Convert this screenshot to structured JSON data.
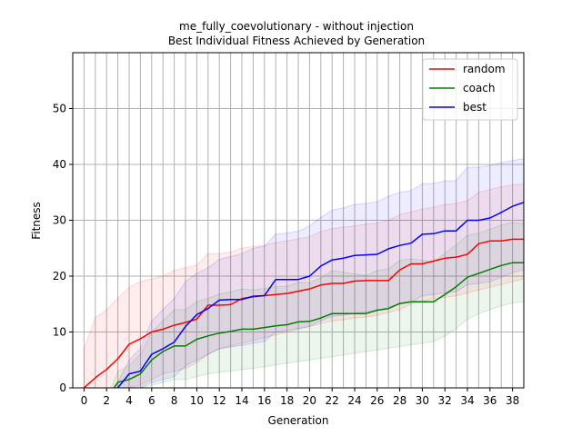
{
  "chart_data": {
    "type": "line",
    "title_line1": "me_fully_coevolutionary - without injection",
    "title_line2": "Best Individual Fitness Achieved by Generation",
    "xlabel": "Generation",
    "ylabel": "Fitness",
    "xlim": [
      -1,
      39
    ],
    "ylim": [
      0,
      60
    ],
    "xticks": [
      0,
      2,
      4,
      6,
      8,
      10,
      12,
      14,
      16,
      18,
      20,
      22,
      24,
      26,
      28,
      30,
      32,
      34,
      36,
      38
    ],
    "yticks": [
      0,
      10,
      20,
      30,
      40,
      50
    ],
    "grid": true,
    "legend_position": "top-right",
    "x": [
      0,
      1,
      2,
      3,
      4,
      5,
      6,
      7,
      8,
      9,
      10,
      11,
      12,
      13,
      14,
      15,
      16,
      17,
      18,
      19,
      20,
      21,
      22,
      23,
      24,
      25,
      26,
      27,
      28,
      29,
      30,
      31,
      32,
      33,
      34,
      35,
      36,
      37,
      38,
      39
    ],
    "series": [
      {
        "name": "random",
        "color": "#ff0000",
        "values": [
          0,
          1.8,
          3.3,
          5.2,
          7.8,
          8.8,
          10,
          10.5,
          11.2,
          11.7,
          12.3,
          14.8,
          14.8,
          14.9,
          16,
          16.3,
          16.5,
          16.7,
          16.9,
          17.3,
          17.7,
          18.4,
          18.7,
          18.7,
          19.1,
          19.2,
          19.2,
          19.2,
          21.1,
          22.2,
          22.2,
          22.7,
          23.2,
          23.4,
          23.9,
          25.8,
          26.3,
          26.3,
          26.6,
          26.6
        ],
        "lower": [
          0,
          0,
          0,
          0,
          0,
          0.5,
          1.5,
          2.5,
          3,
          3.5,
          4.5,
          6,
          7,
          7.5,
          8,
          8.5,
          9,
          9.5,
          10,
          10.5,
          11,
          11.5,
          12,
          12.2,
          12.5,
          12.7,
          13,
          13.5,
          14,
          15,
          15.5,
          16,
          16.2,
          16.5,
          17,
          17.5,
          18,
          18.5,
          19,
          19.5
        ],
        "upper": [
          7,
          12.5,
          14,
          16,
          18,
          19,
          19.5,
          20,
          21,
          21.5,
          22,
          24,
          24,
          24.3,
          25,
          25.3,
          25.5,
          26,
          26.3,
          26.7,
          27,
          28,
          28.5,
          28.8,
          29,
          29.3,
          29.5,
          30,
          31,
          31.5,
          32,
          32.3,
          32.8,
          33,
          33.5,
          35,
          35.5,
          36,
          36.3,
          36.5
        ]
      },
      {
        "name": "coach",
        "color": "#008000",
        "values": [
          -2,
          -2,
          -2,
          1,
          1.5,
          2.5,
          5,
          6.5,
          7.5,
          7.5,
          8.7,
          9.3,
          9.8,
          10.1,
          10.5,
          10.5,
          10.8,
          11.1,
          11.3,
          11.8,
          11.9,
          12.5,
          13.3,
          13.3,
          13.3,
          13.3,
          13.9,
          14.2,
          15.1,
          15.4,
          15.4,
          15.4,
          16.7,
          18.1,
          19.8,
          20.5,
          21.2,
          21.9,
          22.4,
          22.4
        ],
        "lower": [
          -2,
          -2,
          -2,
          -1,
          -0.5,
          0,
          0.5,
          1,
          1.5,
          1.5,
          2,
          2.5,
          2.8,
          3,
          3.3,
          3.5,
          3.8,
          4.1,
          4.4,
          4.7,
          5,
          5.3,
          5.6,
          5.9,
          6.2,
          6.5,
          6.8,
          7.1,
          7.4,
          7.7,
          8,
          8.3,
          9.3,
          10.6,
          12.3,
          13.3,
          14,
          14.7,
          15.2,
          15.4
        ],
        "upper": [
          -2,
          -2,
          -2,
          3,
          4,
          6,
          10,
          12,
          14,
          14,
          15.5,
          16,
          16.8,
          17.2,
          17.7,
          17.5,
          17.8,
          18.1,
          18.2,
          18.9,
          18.8,
          19.7,
          21,
          20.7,
          20.4,
          20.1,
          21,
          21.3,
          22.8,
          23.1,
          22.8,
          22.5,
          24.1,
          25.6,
          27.3,
          27.7,
          28.4,
          29.1,
          29.6,
          29.4
        ]
      },
      {
        "name": "best",
        "color": "#0000ff",
        "values": [
          -2,
          -2,
          -2,
          0,
          2.5,
          3,
          6,
          7,
          8.2,
          11,
          13.1,
          14.2,
          15.7,
          15.8,
          15.8,
          16.4,
          16.5,
          19.4,
          19.4,
          19.4,
          20,
          21.8,
          22.9,
          23.2,
          23.7,
          23.8,
          23.9,
          24.9,
          25.5,
          25.9,
          27.5,
          27.6,
          28.1,
          28.1,
          30,
          30,
          30.4,
          31.4,
          32.5,
          33.2
        ],
        "lower": [
          -2,
          -2,
          -2,
          -1,
          -0.5,
          0,
          1,
          1.5,
          2,
          4,
          5,
          6,
          7,
          7.3,
          7.6,
          8,
          8.3,
          10,
          10.3,
          10.6,
          11,
          12,
          12.8,
          13,
          13.4,
          13.6,
          13.8,
          14.5,
          15,
          15.3,
          16.5,
          16.7,
          17,
          17.2,
          18.5,
          18.7,
          19,
          19.8,
          20.6,
          21.2
        ],
        "upper": [
          -2,
          -2,
          -2,
          1,
          5,
          7,
          12,
          14,
          16,
          19,
          20.5,
          21.5,
          23,
          23.5,
          24,
          25,
          25.3,
          27.5,
          27.7,
          28,
          29,
          30.5,
          31.8,
          32.2,
          32.8,
          33,
          33.3,
          34.3,
          35,
          35.3,
          36.5,
          36.6,
          37,
          37.1,
          39.5,
          39.5,
          39.8,
          40.3,
          40.7,
          41
        ]
      }
    ]
  }
}
